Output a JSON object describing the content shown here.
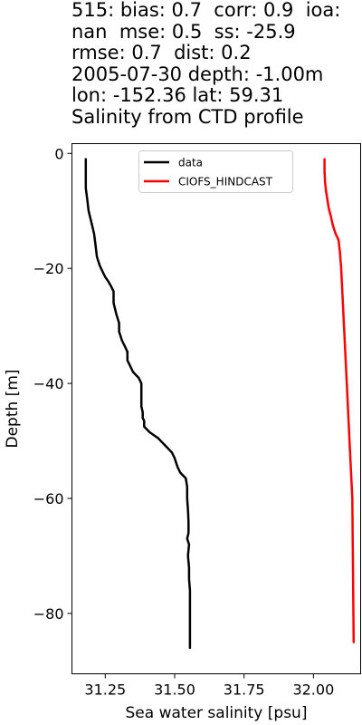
{
  "chart_data": {
    "type": "line",
    "title_lines": [
      "515: bias: 0.7  corr: 0.9  ioa:",
      "nan  mse: 0.5  ss: -25.9",
      "rmse: 0.7  dist: 0.2",
      "2005-07-30 depth: -1.00m",
      "lon: -152.36 lat: 59.31",
      "Salinity from CTD profile"
    ],
    "xlabel": "Sea water salinity [psu]",
    "ylabel": "Depth [m]",
    "xlim": [
      31.13,
      32.17
    ],
    "ylim": [
      -90.5,
      1.7
    ],
    "xticks": [
      31.25,
      31.5,
      31.75,
      32.0
    ],
    "xtick_labels": [
      "31.25",
      "31.50",
      "31.75",
      "32.00"
    ],
    "yticks": [
      0,
      -20,
      -40,
      -60,
      -80
    ],
    "ytick_labels": [
      "0",
      "−20",
      "−40",
      "−60",
      "−80"
    ],
    "grid": false,
    "legend_position": "upper-center",
    "series": [
      {
        "name": "data",
        "color": "#000000",
        "x": [
          31.18,
          31.18,
          31.18,
          31.185,
          31.19,
          31.2,
          31.21,
          31.215,
          31.22,
          31.23,
          31.24,
          31.25,
          31.26,
          31.27,
          31.28,
          31.28,
          31.29,
          31.3,
          31.3,
          31.31,
          31.32,
          31.33,
          31.33,
          31.34,
          31.35,
          31.36,
          31.37,
          31.38,
          31.38,
          31.38,
          31.385,
          31.385,
          31.39,
          31.39,
          31.41,
          31.44,
          31.47,
          31.49,
          31.5,
          31.51,
          31.52,
          31.53,
          31.54,
          31.545,
          31.545,
          31.548,
          31.55,
          31.55,
          31.545,
          31.552,
          31.548,
          31.552,
          31.552,
          31.555,
          31.555,
          31.555
        ],
        "y": [
          -1,
          -3,
          -6,
          -8,
          -10,
          -12,
          -14,
          -16,
          -18,
          -19.5,
          -20.5,
          -21.5,
          -22.2,
          -23,
          -24,
          -26,
          -28,
          -29.5,
          -31,
          -32.5,
          -33.5,
          -34.5,
          -36,
          -37,
          -38,
          -38.5,
          -39,
          -40,
          -42,
          -44,
          -45,
          -46,
          -46.5,
          -47.5,
          -48.5,
          -49.5,
          -51,
          -52,
          -53,
          -54.5,
          -55.5,
          -56,
          -56.5,
          -58,
          -60,
          -62,
          -64,
          -66,
          -67,
          -68,
          -70,
          -72,
          -74,
          -76,
          -80,
          -86
        ]
      },
      {
        "name": "CIOFS_HINDCAST",
        "color": "#ff0000",
        "x": [
          32.04,
          32.04,
          32.042,
          32.045,
          32.05,
          32.055,
          32.063,
          32.07,
          32.08,
          32.09,
          32.095,
          32.1,
          32.11,
          32.12,
          32.13,
          32.14,
          32.145
        ],
        "y": [
          -1,
          -3,
          -5,
          -6.5,
          -8,
          -9.5,
          -11,
          -12.5,
          -14,
          -15,
          -17,
          -20,
          -30,
          -40,
          -50,
          -60,
          -85
        ]
      }
    ]
  }
}
